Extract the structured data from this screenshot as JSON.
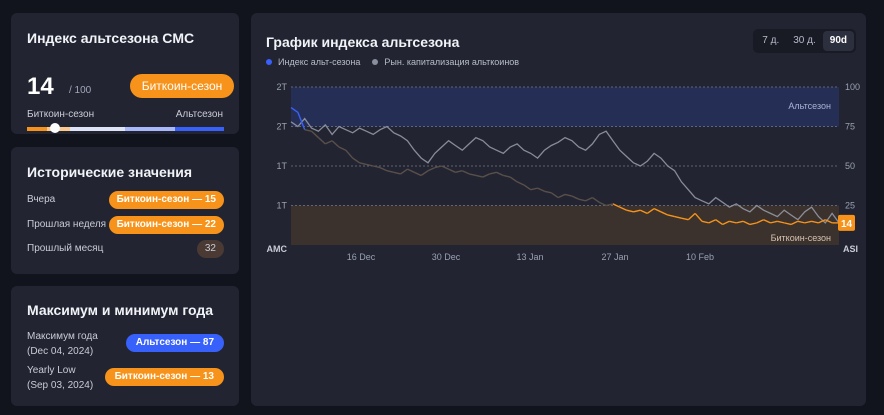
{
  "index_card": {
    "title": "Индекс альтсезона CMC",
    "score": "14",
    "score_max": "/ 100",
    "season_label": "Биткоин-сезон",
    "left_label": "Биткоин-сезон",
    "right_label": "Альтсезон",
    "gauge_value": 14,
    "gauge_colors": [
      "#f7931a",
      "#fbc88d",
      "#dfe3f6",
      "#a8b8fb",
      "#3861fb"
    ]
  },
  "history_card": {
    "title": "Исторические значения",
    "rows": [
      {
        "label": "Вчера",
        "value": "Биткоин-сезон — 15"
      },
      {
        "label": "Прошлая неделя",
        "value": "Биткоин-сезон — 22"
      },
      {
        "label": "Прошлый месяц",
        "value": "32"
      }
    ]
  },
  "year_card": {
    "title": "Максимум и минимум года",
    "rows": [
      {
        "label": "Максимум года",
        "date": "(Dec 04, 2024)",
        "value": "Альтсезон — 87"
      },
      {
        "label": "Yearly Low",
        "date": "(Sep 03, 2024)",
        "value": "Биткоин-сезон — 13"
      }
    ]
  },
  "chart_card": {
    "title": "График индекса альтсезона",
    "tabs": [
      "7 д.",
      "30 д.",
      "90d"
    ],
    "active_tab": "90d",
    "legend": [
      {
        "label": "Индекс альт-сезона",
        "color": "#3861fb"
      },
      {
        "label": "Рын. капитализация альткоинов",
        "color": "#8a8f9f"
      }
    ],
    "current_badge": "14"
  },
  "colors": {
    "orange": "#f7931a",
    "blue": "#3861fb",
    "card_bg": "#222531",
    "page_bg": "#12141d"
  },
  "chart_data": {
    "type": "line",
    "x_ticks": [
      "16 Dec",
      "30 Dec",
      "13 Jan",
      "27 Jan",
      "10 Feb"
    ],
    "left_axis_label": "AMC",
    "right_axis_label": "ASI",
    "left_ticks": [
      "2T",
      "2T",
      "1T",
      "1T"
    ],
    "right_ticks": [
      "100",
      "75",
      "50",
      "25"
    ],
    "right_ylim": [
      0,
      100
    ],
    "zones": [
      {
        "label": "Альтсезон",
        "from": 75,
        "to": 100
      },
      {
        "label": "Биткоин-сезон",
        "from": 0,
        "to": 25
      }
    ],
    "series": [
      {
        "name": "Индекс альт-сезона",
        "values": [
          87,
          84,
          73,
          72,
          68,
          64,
          66,
          62,
          60,
          55,
          52,
          51,
          50,
          49,
          47,
          46,
          45,
          48,
          46,
          44,
          47,
          49,
          50,
          48,
          46,
          47,
          45,
          44,
          43,
          45,
          46,
          44,
          43,
          40,
          38,
          35,
          36,
          34,
          33,
          30,
          32,
          31,
          29,
          28,
          30,
          27,
          25,
          26,
          24,
          22,
          21,
          22,
          20,
          23,
          21,
          19,
          18,
          17,
          16,
          20,
          15,
          14,
          16,
          13,
          15,
          14,
          15,
          13,
          14,
          16,
          14,
          15,
          14,
          13,
          15,
          14,
          15,
          14,
          16,
          14,
          14
        ]
      },
      {
        "name": "Рын. капитализация альткоинов",
        "values": [
          78,
          75,
          80,
          74,
          72,
          76,
          70,
          75,
          73,
          71,
          74,
          72,
          70,
          73,
          75,
          71,
          69,
          66,
          60,
          55,
          52,
          58,
          62,
          66,
          63,
          60,
          64,
          68,
          66,
          62,
          60,
          58,
          62,
          64,
          60,
          58,
          55,
          60,
          63,
          65,
          68,
          66,
          62,
          60,
          64,
          70,
          72,
          66,
          60,
          56,
          52,
          50,
          53,
          58,
          55,
          50,
          47,
          40,
          35,
          30,
          28,
          26,
          30,
          27,
          24,
          26,
          23,
          21,
          25,
          22,
          20,
          18,
          22,
          19,
          16,
          21,
          24,
          18,
          14,
          20,
          14
        ]
      }
    ]
  }
}
